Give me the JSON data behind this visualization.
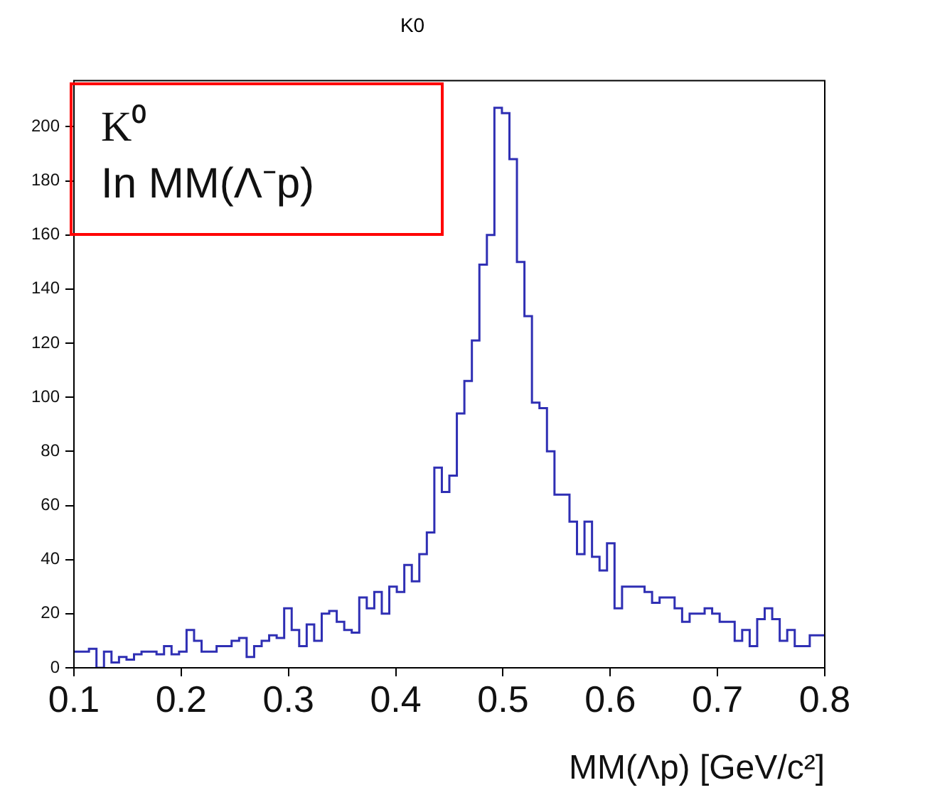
{
  "chart_data": {
    "type": "histogram",
    "title": "K0",
    "xlabel": "MM(Λp) [GeV/c²]",
    "annotations": [
      "K⁰",
      "In MM(Λ⁻p)"
    ],
    "color": "#2f2fb4",
    "xlim": [
      0.1,
      0.8
    ],
    "xticks": [
      0.1,
      0.2,
      0.3,
      0.4,
      0.5,
      0.6,
      0.7,
      0.8
    ],
    "ylim": [
      0,
      217
    ],
    "yticks": [
      0,
      20,
      40,
      60,
      80,
      100,
      120,
      140,
      160,
      180,
      200
    ],
    "bins": [
      0.1,
      0.107,
      0.114,
      0.121,
      0.128,
      0.135,
      0.142,
      0.149,
      0.156,
      0.163,
      0.17,
      0.177,
      0.184,
      0.191,
      0.198,
      0.205,
      0.212,
      0.219,
      0.226,
      0.233,
      0.24,
      0.247,
      0.254,
      0.261,
      0.268,
      0.275,
      0.282,
      0.289,
      0.296,
      0.303,
      0.31,
      0.317,
      0.324,
      0.331,
      0.338,
      0.345,
      0.352,
      0.359,
      0.366,
      0.373,
      0.38,
      0.387,
      0.394,
      0.401,
      0.408,
      0.415,
      0.422,
      0.429,
      0.436,
      0.443,
      0.45,
      0.457,
      0.464,
      0.471,
      0.478,
      0.485,
      0.492,
      0.499,
      0.506,
      0.513,
      0.52,
      0.527,
      0.534,
      0.541,
      0.548,
      0.555,
      0.562,
      0.569,
      0.576,
      0.583,
      0.59,
      0.597,
      0.604,
      0.611,
      0.618,
      0.625,
      0.632,
      0.639,
      0.646,
      0.653,
      0.66,
      0.667,
      0.674,
      0.681,
      0.688,
      0.695,
      0.702,
      0.709,
      0.716,
      0.723,
      0.73,
      0.737,
      0.744,
      0.751,
      0.758,
      0.765,
      0.772,
      0.779,
      0.786,
      0.793,
      0.8
    ],
    "values": [
      6,
      6,
      7,
      0,
      6,
      2,
      4,
      3,
      5,
      6,
      6,
      5,
      8,
      5,
      6,
      14,
      10,
      6,
      6,
      8,
      8,
      10,
      11,
      4,
      8,
      10,
      12,
      11,
      22,
      14,
      8,
      16,
      10,
      20,
      21,
      17,
      14,
      13,
      26,
      22,
      28,
      20,
      30,
      28,
      38,
      32,
      42,
      50,
      74,
      65,
      71,
      94,
      106,
      121,
      149,
      160,
      207,
      205,
      188,
      150,
      130,
      98,
      96,
      80,
      64,
      64,
      54,
      42,
      54,
      41,
      36,
      46,
      22,
      30,
      30,
      30,
      28,
      24,
      26,
      26,
      22,
      17,
      20,
      20,
      22,
      20,
      17,
      17,
      10,
      14,
      8,
      18,
      22,
      18,
      10,
      14,
      8,
      8,
      12,
      12
    ]
  }
}
